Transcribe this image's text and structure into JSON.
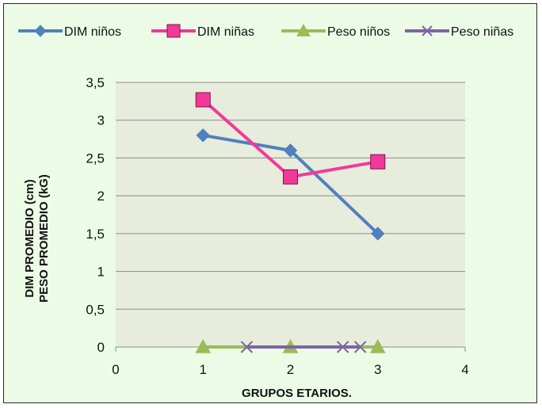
{
  "chart_data": {
    "type": "scatter",
    "xlabel": "GRUPOS ETARIOS.",
    "ylabel_lines": [
      "DIM PROMEDIO (cm)",
      "PESO PROMEDIO (kG)"
    ],
    "xlim": [
      0,
      4
    ],
    "ylim": [
      0,
      3.5
    ],
    "x_ticks": [
      0,
      1,
      2,
      3,
      4
    ],
    "y_ticks": [
      0,
      0.5,
      1,
      1.5,
      2,
      2.5,
      3,
      3.5
    ],
    "x_tick_labels": [
      "0",
      "1",
      "2",
      "3",
      "4"
    ],
    "y_tick_labels": [
      "0",
      "0,5",
      "1",
      "1,5",
      "2",
      "2,5",
      "3",
      "3,5"
    ],
    "grid": true,
    "legend_position": "top",
    "plot_background": "#e8ecdc",
    "series": [
      {
        "name": "DIM niños",
        "color": "#4f81bd",
        "marker": "diamond",
        "x": [
          1,
          2,
          3
        ],
        "y": [
          2.8,
          2.6,
          1.5
        ]
      },
      {
        "name": "DIM niñas",
        "color": "#f2399a",
        "marker": "square",
        "x": [
          1,
          2,
          3
        ],
        "y": [
          3.27,
          2.25,
          2.45
        ]
      },
      {
        "name": "Peso niños",
        "color": "#9bbb59",
        "marker": "triangle",
        "x": [
          1,
          2,
          3
        ],
        "y": [
          0,
          0,
          0
        ]
      },
      {
        "name": "Peso niñas",
        "color": "#8064a2",
        "marker": "x",
        "x": [
          1.5,
          2.6,
          2.8
        ],
        "y": [
          0,
          0,
          0
        ]
      }
    ]
  }
}
